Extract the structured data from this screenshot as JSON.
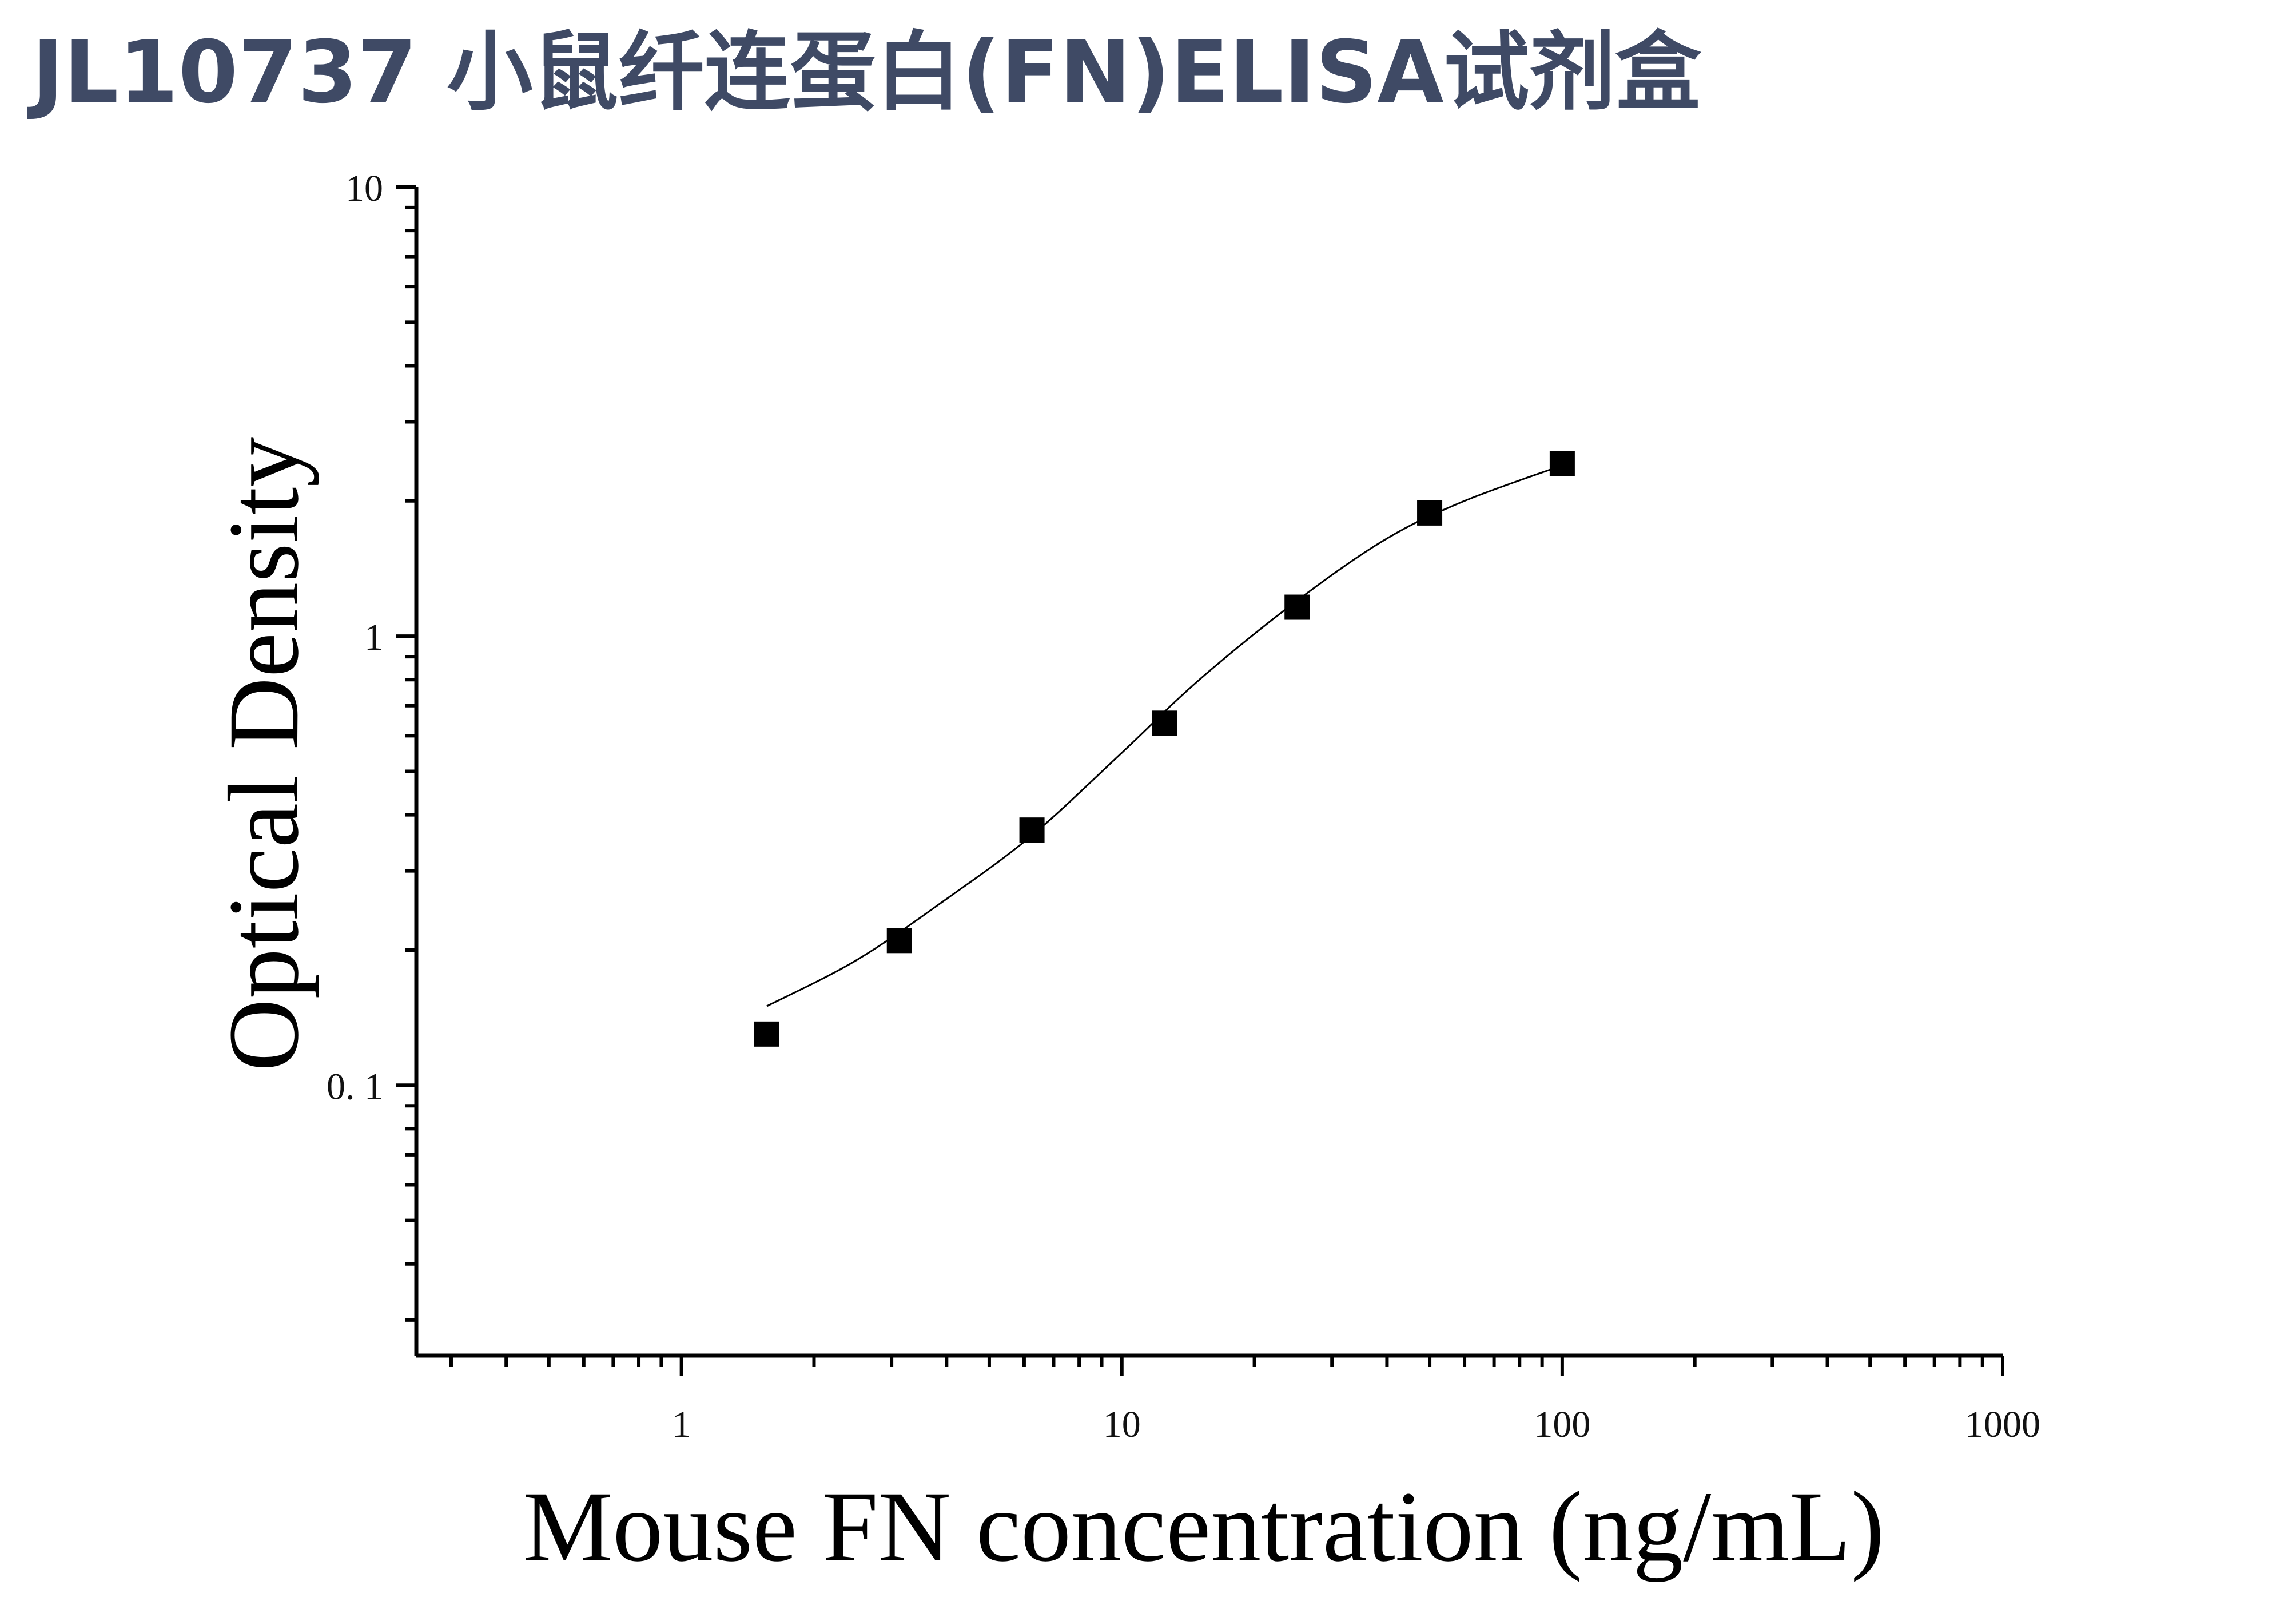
{
  "title": "JL10737 小鼠纤连蛋白(FN)ELISA试剂盒",
  "colors": {
    "title": "#3f4a65",
    "axis": "#000000",
    "marker": "#000000",
    "curve": "#000000"
  },
  "chart_data": {
    "type": "scatter",
    "title": "",
    "xlabel": "Mouse FN concentration (ng/mL)",
    "ylabel": "Optical Density",
    "x_scale": "log",
    "y_scale": "log",
    "xlim": [
      0.25,
      1000
    ],
    "ylim": [
      0.025,
      10
    ],
    "x_ticks": [
      {
        "value": 1,
        "label": "1"
      },
      {
        "value": 10,
        "label": "10"
      },
      {
        "value": 100,
        "label": "100"
      },
      {
        "value": 1000,
        "label": "1000"
      }
    ],
    "y_ticks": [
      {
        "value": 0.1,
        "label": "0. 1"
      },
      {
        "value": 1,
        "label": "1"
      },
      {
        "value": 10,
        "label": "10"
      }
    ],
    "grid": false,
    "legend": "none",
    "points": {
      "x": [
        1.5625,
        3.125,
        6.25,
        12.5,
        25,
        50,
        100
      ],
      "y": [
        0.13,
        0.21,
        0.37,
        0.64,
        1.16,
        1.88,
        2.42
      ]
    },
    "fit_curve": {
      "x": [
        1.5625,
        2.5,
        4,
        6.25,
        10,
        15,
        25,
        40,
        60,
        100
      ],
      "y": [
        0.15,
        0.19,
        0.26,
        0.36,
        0.55,
        0.8,
        1.2,
        1.65,
        2.0,
        2.4
      ]
    }
  }
}
